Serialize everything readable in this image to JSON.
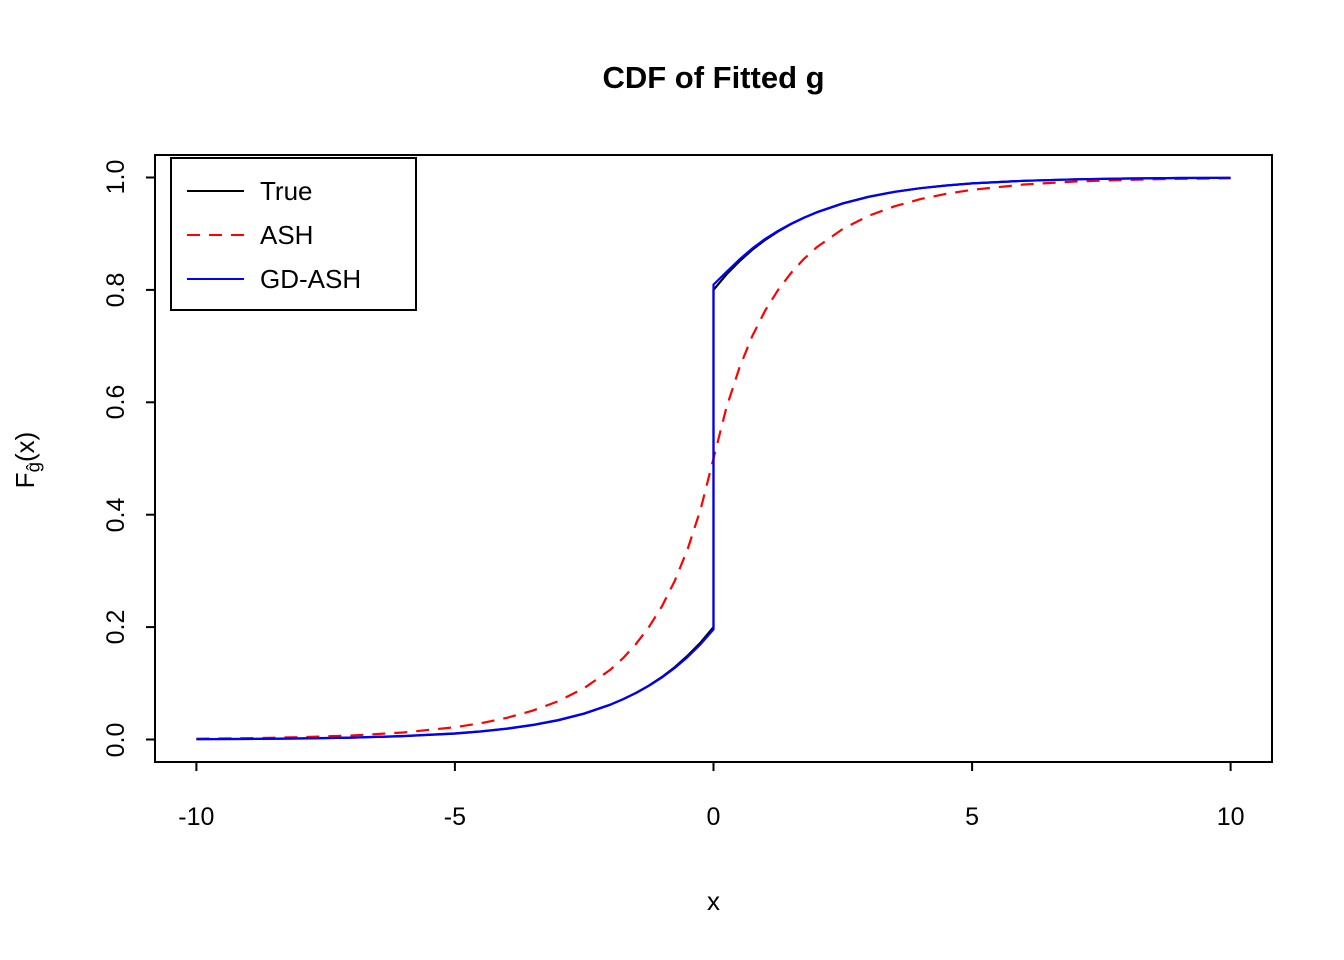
{
  "page": {
    "background": "#ffffff"
  },
  "chart_data": {
    "type": "line",
    "title": "CDF of Fitted g",
    "xlabel": "x",
    "ylabel": "F_ĝ(x)",
    "ylabel_parts": {
      "main": "F",
      "sub": "ĝ",
      "rest": "(x)"
    },
    "xlim": [
      -10,
      10
    ],
    "ylim": [
      0,
      1
    ],
    "x_ticks": [
      -10,
      -5,
      0,
      5,
      10
    ],
    "x_tick_labels": [
      "-10",
      "-5",
      "0",
      "5",
      "10"
    ],
    "y_ticks": [
      0.0,
      0.2,
      0.4,
      0.6,
      0.8,
      1.0
    ],
    "y_tick_labels": [
      "0.0",
      "0.2",
      "0.4",
      "0.6",
      "0.8",
      "1.0"
    ],
    "grid": false,
    "legend": {
      "position": "topleft",
      "entries": [
        "True",
        "ASH",
        "GD-ASH"
      ]
    },
    "series": [
      {
        "name": "True",
        "color": "#000000",
        "line_style": "solid",
        "points": [
          [
            -10,
            0.0006
          ],
          [
            -9,
            0.001
          ],
          [
            -8,
            0.0018
          ],
          [
            -7,
            0.0033
          ],
          [
            -6,
            0.0059
          ],
          [
            -5,
            0.0106
          ],
          [
            -4.5,
            0.0142
          ],
          [
            -4,
            0.019
          ],
          [
            -3.5,
            0.0255
          ],
          [
            -3,
            0.0342
          ],
          [
            -2.5,
            0.046
          ],
          [
            -2,
            0.0617
          ],
          [
            -1.75,
            0.0715
          ],
          [
            -1.5,
            0.0828
          ],
          [
            -1.25,
            0.0959
          ],
          [
            -1,
            0.1111
          ],
          [
            -0.75,
            0.1287
          ],
          [
            -0.5,
            0.1491
          ],
          [
            -0.25,
            0.1727
          ],
          [
            0,
            0.2
          ],
          [
            0,
            0.8
          ],
          [
            0.25,
            0.8273
          ],
          [
            0.5,
            0.8509
          ],
          [
            0.75,
            0.8713
          ],
          [
            1,
            0.8889
          ],
          [
            1.25,
            0.9041
          ],
          [
            1.5,
            0.9172
          ],
          [
            1.75,
            0.9285
          ],
          [
            2,
            0.9383
          ],
          [
            2.5,
            0.954
          ],
          [
            3,
            0.9658
          ],
          [
            3.5,
            0.9745
          ],
          [
            4,
            0.981
          ],
          [
            4.5,
            0.9858
          ],
          [
            5,
            0.9894
          ],
          [
            6,
            0.9941
          ],
          [
            7,
            0.9967
          ],
          [
            8,
            0.9982
          ],
          [
            9,
            0.999
          ],
          [
            10,
            0.9994
          ]
        ]
      },
      {
        "name": "ASH",
        "color": "#ff0000",
        "line_style": "dashed",
        "points": [
          [
            -10,
            0.0014
          ],
          [
            -9,
            0.0024
          ],
          [
            -8,
            0.0041
          ],
          [
            -7,
            0.0072
          ],
          [
            -6,
            0.0125
          ],
          [
            -5,
            0.0219
          ],
          [
            -4.5,
            0.029
          ],
          [
            -4,
            0.0384
          ],
          [
            -3.5,
            0.0512
          ],
          [
            -3,
            0.0682
          ],
          [
            -2.5,
            0.0915
          ],
          [
            -2,
            0.1238
          ],
          [
            -1.75,
            0.1447
          ],
          [
            -1.5,
            0.1697
          ],
          [
            -1.25,
            0.2
          ],
          [
            -1,
            0.2367
          ],
          [
            -0.75,
            0.2821
          ],
          [
            -0.5,
            0.3386
          ],
          [
            -0.25,
            0.4096
          ],
          [
            0,
            0.5
          ],
          [
            0.25,
            0.5904
          ],
          [
            0.5,
            0.6614
          ],
          [
            0.75,
            0.7179
          ],
          [
            1,
            0.7633
          ],
          [
            1.25,
            0.8
          ],
          [
            1.5,
            0.8303
          ],
          [
            1.75,
            0.8553
          ],
          [
            2,
            0.8762
          ],
          [
            2.5,
            0.9085
          ],
          [
            3,
            0.9318
          ],
          [
            3.5,
            0.9488
          ],
          [
            4,
            0.9616
          ],
          [
            4.5,
            0.971
          ],
          [
            5,
            0.9781
          ],
          [
            6,
            0.9875
          ],
          [
            7,
            0.9928
          ],
          [
            8,
            0.9959
          ],
          [
            9,
            0.9976
          ],
          [
            10,
            0.9986
          ]
        ]
      },
      {
        "name": "GD-ASH",
        "color": "#0000ff",
        "line_style": "solid",
        "points": [
          [
            -10,
            0.0006
          ],
          [
            -9,
            0.0011
          ],
          [
            -8,
            0.002
          ],
          [
            -7,
            0.0035
          ],
          [
            -6,
            0.0062
          ],
          [
            -5,
            0.0109
          ],
          [
            -4.5,
            0.0146
          ],
          [
            -4,
            0.0194
          ],
          [
            -3.5,
            0.026
          ],
          [
            -3,
            0.0347
          ],
          [
            -2.5,
            0.0464
          ],
          [
            -2,
            0.062
          ],
          [
            -1.75,
            0.0717
          ],
          [
            -1.5,
            0.0827
          ],
          [
            -1.25,
            0.0955
          ],
          [
            -1,
            0.1102
          ],
          [
            -0.75,
            0.1272
          ],
          [
            -0.5,
            0.1469
          ],
          [
            -0.25,
            0.1696
          ],
          [
            0,
            0.1959
          ],
          [
            0,
            0.8094
          ],
          [
            0.25,
            0.8318
          ],
          [
            0.5,
            0.8541
          ],
          [
            0.75,
            0.8738
          ],
          [
            1,
            0.8907
          ],
          [
            1.25,
            0.9052
          ],
          [
            1.5,
            0.9178
          ],
          [
            1.75,
            0.9287
          ],
          [
            2,
            0.9381
          ],
          [
            2.5,
            0.9536
          ],
          [
            3,
            0.9655
          ],
          [
            3.5,
            0.9743
          ],
          [
            4,
            0.9809
          ],
          [
            4.5,
            0.9857
          ],
          [
            5,
            0.9894
          ],
          [
            6,
            0.9941
          ],
          [
            7,
            0.9967
          ],
          [
            8,
            0.9982
          ],
          [
            9,
            0.999
          ],
          [
            10,
            0.9994
          ]
        ]
      }
    ]
  }
}
